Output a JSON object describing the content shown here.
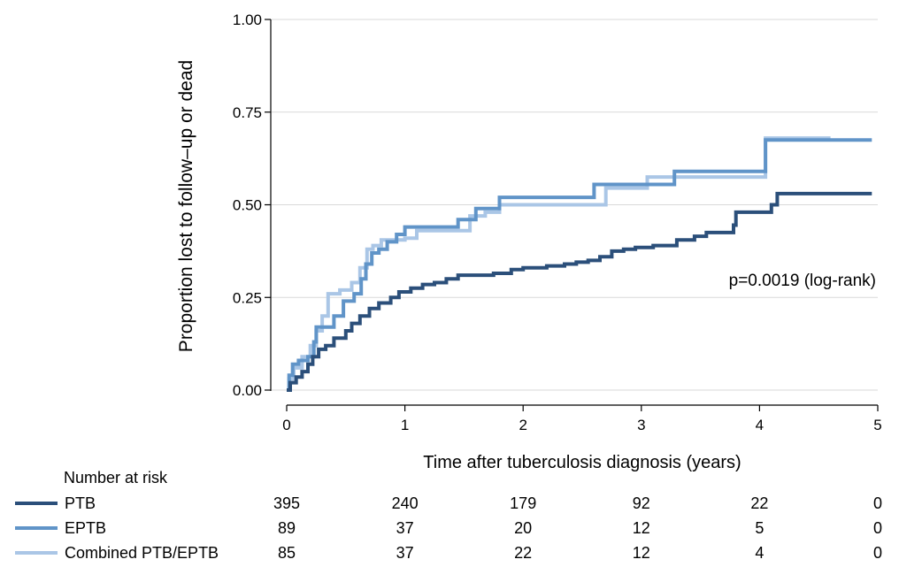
{
  "chart_data": {
    "type": "line",
    "step": true,
    "title": "",
    "xlabel": "Time after  tuberculosis diagnosis (years)",
    "ylabel": "Proportion lost to follow–up or dead",
    "xlim": [
      0,
      5
    ],
    "ylim": [
      0,
      1
    ],
    "xticks": [
      "0",
      "1",
      "2",
      "3",
      "4",
      "5"
    ],
    "xtick_values": [
      0,
      1,
      2,
      3,
      4,
      5
    ],
    "yticks": [
      "0.00",
      "0.25",
      "0.50",
      "0.75",
      "1.00"
    ],
    "ytick_values": [
      0,
      0.25,
      0.5,
      0.75,
      1.0
    ],
    "grid": "horizontal",
    "annotation": "p=0.0019 (log-rank)",
    "series": [
      {
        "name": "PTB",
        "color": "#2b4f7a",
        "points": [
          [
            0,
            0
          ],
          [
            0.03,
            0.02
          ],
          [
            0.08,
            0.035
          ],
          [
            0.13,
            0.05
          ],
          [
            0.18,
            0.07
          ],
          [
            0.22,
            0.09
          ],
          [
            0.27,
            0.11
          ],
          [
            0.33,
            0.12
          ],
          [
            0.4,
            0.14
          ],
          [
            0.5,
            0.16
          ],
          [
            0.55,
            0.18
          ],
          [
            0.62,
            0.2
          ],
          [
            0.7,
            0.22
          ],
          [
            0.78,
            0.235
          ],
          [
            0.88,
            0.25
          ],
          [
            0.95,
            0.265
          ],
          [
            1.05,
            0.275
          ],
          [
            1.15,
            0.285
          ],
          [
            1.25,
            0.29
          ],
          [
            1.35,
            0.3
          ],
          [
            1.45,
            0.31
          ],
          [
            1.6,
            0.31
          ],
          [
            1.75,
            0.315
          ],
          [
            1.9,
            0.325
          ],
          [
            2.0,
            0.33
          ],
          [
            2.2,
            0.335
          ],
          [
            2.35,
            0.34
          ],
          [
            2.45,
            0.345
          ],
          [
            2.55,
            0.35
          ],
          [
            2.65,
            0.36
          ],
          [
            2.75,
            0.375
          ],
          [
            2.85,
            0.38
          ],
          [
            2.95,
            0.385
          ],
          [
            3.1,
            0.39
          ],
          [
            3.3,
            0.405
          ],
          [
            3.45,
            0.415
          ],
          [
            3.55,
            0.425
          ],
          [
            3.78,
            0.445
          ],
          [
            3.8,
            0.48
          ],
          [
            4.05,
            0.48
          ],
          [
            4.1,
            0.5
          ],
          [
            4.15,
            0.53
          ],
          [
            4.95,
            0.53
          ]
        ]
      },
      {
        "name": "EPTB",
        "color": "#6094c8",
        "points": [
          [
            0,
            0
          ],
          [
            0.02,
            0.04
          ],
          [
            0.05,
            0.07
          ],
          [
            0.1,
            0.08
          ],
          [
            0.18,
            0.09
          ],
          [
            0.23,
            0.13
          ],
          [
            0.25,
            0.17
          ],
          [
            0.4,
            0.2
          ],
          [
            0.48,
            0.24
          ],
          [
            0.57,
            0.26
          ],
          [
            0.63,
            0.3
          ],
          [
            0.67,
            0.34
          ],
          [
            0.72,
            0.37
          ],
          [
            0.78,
            0.38
          ],
          [
            0.85,
            0.4
          ],
          [
            0.93,
            0.42
          ],
          [
            1.0,
            0.44
          ],
          [
            1.45,
            0.46
          ],
          [
            1.6,
            0.49
          ],
          [
            1.8,
            0.52
          ],
          [
            2.6,
            0.555
          ],
          [
            3.28,
            0.59
          ],
          [
            4.05,
            0.675
          ],
          [
            4.95,
            0.675
          ]
        ]
      },
      {
        "name": "Combined PTB/EPTB",
        "color": "#aac6e6",
        "points": [
          [
            0,
            0
          ],
          [
            0.02,
            0.03
          ],
          [
            0.06,
            0.06
          ],
          [
            0.13,
            0.09
          ],
          [
            0.2,
            0.12
          ],
          [
            0.25,
            0.16
          ],
          [
            0.3,
            0.2
          ],
          [
            0.35,
            0.26
          ],
          [
            0.45,
            0.27
          ],
          [
            0.55,
            0.29
          ],
          [
            0.62,
            0.33
          ],
          [
            0.68,
            0.38
          ],
          [
            0.73,
            0.39
          ],
          [
            0.8,
            0.405
          ],
          [
            1.0,
            0.41
          ],
          [
            1.1,
            0.43
          ],
          [
            1.55,
            0.47
          ],
          [
            1.68,
            0.48
          ],
          [
            1.8,
            0.5
          ],
          [
            2.7,
            0.545
          ],
          [
            3.05,
            0.575
          ],
          [
            4.05,
            0.68
          ],
          [
            4.6,
            0.68
          ]
        ]
      }
    ],
    "risk_table": {
      "title": "Number at risk",
      "times": [
        0,
        1,
        2,
        3,
        4,
        5
      ],
      "rows": [
        {
          "name": "PTB",
          "color": "#2b4f7a",
          "values": [
            "395",
            "240",
            "179",
            "92",
            "22",
            "0"
          ]
        },
        {
          "name": "EPTB",
          "color": "#6094c8",
          "values": [
            "89",
            "37",
            "20",
            "12",
            "5",
            "0"
          ]
        },
        {
          "name": "Combined PTB/EPTB",
          "color": "#aac6e6",
          "values": [
            "85",
            "37",
            "22",
            "12",
            "4",
            "0"
          ]
        }
      ]
    }
  }
}
